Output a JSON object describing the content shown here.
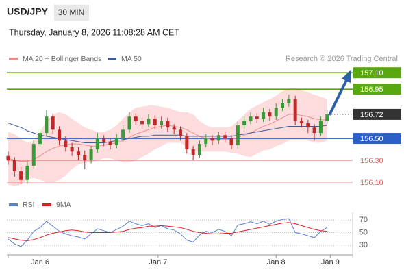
{
  "header": {
    "symbol": "USD/JPY",
    "timeframe": "30 MIN",
    "timestamp": "Thursday, January 8, 2026 11:08:28 AM CET"
  },
  "chart_data": [
    {
      "type": "candlestick",
      "source": "Research © 2026 Trading Central",
      "xlim": [
        0,
        54
      ],
      "ylim": [
        156.0,
        157.17
      ],
      "up_color": "#3a9a3a",
      "down_color": "#c0282a",
      "open": [
        156.34,
        156.3,
        156.2,
        156.12,
        156.25,
        156.45,
        156.55,
        156.7,
        156.58,
        156.48,
        156.42,
        156.38,
        156.35,
        156.3,
        156.4,
        156.5,
        156.47,
        156.44,
        156.5,
        156.58,
        156.7,
        156.66,
        156.63,
        156.68,
        156.62,
        156.66,
        156.6,
        156.58,
        156.52,
        156.4,
        156.35,
        156.45,
        156.5,
        156.48,
        156.53,
        156.5,
        156.44,
        156.62,
        156.66,
        156.7,
        156.68,
        156.74,
        156.7,
        156.78,
        156.82,
        156.86,
        156.66,
        156.64,
        156.6,
        156.55,
        156.66
      ],
      "high": [
        156.38,
        156.33,
        156.24,
        156.29,
        156.49,
        156.59,
        156.76,
        156.73,
        156.61,
        156.52,
        156.46,
        156.42,
        156.39,
        156.43,
        156.55,
        156.53,
        156.5,
        156.54,
        156.62,
        156.74,
        156.73,
        156.69,
        156.72,
        156.71,
        156.7,
        156.69,
        156.63,
        156.61,
        156.55,
        156.43,
        156.48,
        156.54,
        156.53,
        156.56,
        156.56,
        156.53,
        156.66,
        156.7,
        156.74,
        156.73,
        156.78,
        156.77,
        156.82,
        156.86,
        156.9,
        156.89,
        156.69,
        156.67,
        156.63,
        156.7,
        156.76
      ],
      "low": [
        156.26,
        156.15,
        156.08,
        156.09,
        156.22,
        156.42,
        156.52,
        156.54,
        156.44,
        156.38,
        156.34,
        156.3,
        156.22,
        156.27,
        156.37,
        156.43,
        156.4,
        156.41,
        156.47,
        156.55,
        156.62,
        156.59,
        156.6,
        156.58,
        156.59,
        156.56,
        156.54,
        156.48,
        156.36,
        156.3,
        156.32,
        156.42,
        156.44,
        156.45,
        156.46,
        156.4,
        156.41,
        156.59,
        156.63,
        156.64,
        156.65,
        156.66,
        156.67,
        156.75,
        156.79,
        156.62,
        156.6,
        156.55,
        156.48,
        156.52,
        156.63
      ],
      "close": [
        156.3,
        156.2,
        156.12,
        156.25,
        156.45,
        156.55,
        156.7,
        156.58,
        156.48,
        156.42,
        156.38,
        156.35,
        156.3,
        156.4,
        156.5,
        156.47,
        156.44,
        156.5,
        156.58,
        156.7,
        156.66,
        156.63,
        156.68,
        156.62,
        156.66,
        156.6,
        156.58,
        156.52,
        156.4,
        156.35,
        156.45,
        156.5,
        156.48,
        156.53,
        156.5,
        156.44,
        156.62,
        156.66,
        156.7,
        156.68,
        156.74,
        156.7,
        156.78,
        156.82,
        156.86,
        156.66,
        156.64,
        156.6,
        156.55,
        156.66,
        156.72
      ],
      "series": [
        {
          "name": "MA 20 + Bollinger Bands",
          "color": "#f08a8a",
          "band_color": "#fcdcdc",
          "values": [
            156.32,
            156.3,
            156.29,
            156.29,
            156.31,
            156.34,
            156.38,
            156.41,
            156.43,
            156.44,
            156.45,
            156.45,
            156.44,
            156.43,
            156.43,
            156.44,
            156.45,
            156.46,
            156.48,
            156.51,
            156.54,
            156.56,
            156.58,
            156.6,
            156.61,
            156.62,
            156.61,
            156.6,
            156.58,
            156.55,
            156.52,
            156.5,
            156.49,
            156.49,
            156.49,
            156.49,
            156.51,
            156.53,
            156.55,
            156.58,
            156.61,
            156.63,
            156.66,
            156.69,
            156.72,
            156.72,
            156.71,
            156.7,
            156.68,
            156.67,
            156.67
          ],
          "upper": [
            156.56,
            156.54,
            156.5,
            156.46,
            156.48,
            156.56,
            156.66,
            156.72,
            156.74,
            156.72,
            156.68,
            156.64,
            156.6,
            156.58,
            156.56,
            156.56,
            156.58,
            156.62,
            156.68,
            156.74,
            156.78,
            156.79,
            156.8,
            156.8,
            156.79,
            156.78,
            156.76,
            156.74,
            156.74,
            156.72,
            156.66,
            156.62,
            156.6,
            156.6,
            156.6,
            156.61,
            156.66,
            156.72,
            156.77,
            156.8,
            156.83,
            156.86,
            156.89,
            156.93,
            156.96,
            156.96,
            156.94,
            156.92,
            156.9,
            156.88,
            156.86
          ],
          "lower": [
            156.08,
            156.06,
            156.08,
            156.12,
            156.14,
            156.12,
            156.1,
            156.1,
            156.12,
            156.16,
            156.22,
            156.26,
            156.28,
            156.28,
            156.3,
            156.32,
            156.32,
            156.3,
            156.28,
            156.28,
            156.3,
            156.33,
            156.36,
            156.4,
            156.43,
            156.46,
            156.46,
            156.46,
            156.42,
            156.38,
            156.38,
            156.38,
            156.38,
            156.38,
            156.38,
            156.37,
            156.36,
            156.34,
            156.33,
            156.36,
            156.39,
            156.4,
            156.43,
            156.45,
            156.48,
            156.48,
            156.48,
            156.48,
            156.46,
            156.46,
            156.48
          ]
        },
        {
          "name": "MA 50",
          "color": "#3d5a99",
          "values": [
            156.64,
            156.62,
            156.6,
            156.57,
            156.55,
            156.53,
            156.52,
            156.51,
            156.5,
            156.49,
            156.48,
            156.47,
            156.46,
            156.46,
            156.46,
            156.46,
            156.47,
            156.48,
            156.49,
            156.5,
            156.51,
            156.52,
            156.52,
            156.53,
            156.53,
            156.53,
            156.53,
            156.53,
            156.52,
            156.52,
            156.52,
            156.52,
            156.52,
            156.52,
            156.52,
            156.52,
            156.53,
            156.54,
            156.55,
            156.56,
            156.57,
            156.58,
            156.59,
            156.6,
            156.61,
            156.61,
            156.61,
            156.61,
            156.61,
            156.61,
            156.62
          ]
        }
      ],
      "levels": [
        {
          "price": {
            "value": 157.1,
            "label": "157.10"
          },
          "color": "#5aa80f",
          "line_style": "solid",
          "label_style": "box"
        },
        {
          "price": {
            "value": 156.95,
            "label": "156.95"
          },
          "color": "#5aa80f",
          "line_style": "solid",
          "label_style": "box"
        },
        {
          "price": 156.72,
          "color": "#333333",
          "line_style": "dotted",
          "label_style": "box"
        },
        {
          "price": {
            "value": 156.5,
            "label": "156.50"
          },
          "color": "#2d5fc8",
          "line_style": "solid",
          "label_style": "box"
        },
        {
          "price": {
            "value": 156.3,
            "label": "156.30"
          },
          "color": "#e06060",
          "line_style": "thin",
          "label_style": "text"
        },
        {
          "price": {
            "value": 156.1,
            "label": "156.10"
          },
          "color": "#e06060",
          "line_style": "thin",
          "label_style": "text"
        }
      ]
    },
    {
      "type": "line",
      "xlim": [
        0,
        54
      ],
      "ylim": [
        17,
        82
      ],
      "yticks": [
        70,
        50,
        30
      ],
      "xticks": [
        {
          "value": 5,
          "label": "Jan 6"
        },
        {
          "value": 23.5,
          "label": "Jan 7"
        },
        {
          "value": 42,
          "label": "Jan 8"
        },
        {
          "value": 50.5,
          "label": "Jan 9"
        }
      ],
      "series": [
        {
          "name": "RSI",
          "color": "#5b7fd6",
          "values": [
            40,
            32,
            28,
            38,
            52,
            58,
            68,
            60,
            52,
            48,
            45,
            43,
            40,
            48,
            56,
            53,
            50,
            55,
            60,
            68,
            64,
            61,
            64,
            58,
            61,
            56,
            54,
            48,
            38,
            35,
            46,
            52,
            50,
            55,
            52,
            45,
            62,
            64,
            67,
            64,
            68,
            63,
            68,
            71,
            72,
            50,
            48,
            45,
            42,
            52,
            58
          ]
        },
        {
          "name": "9MA",
          "color": "#e02020",
          "values": [
            42,
            40,
            38,
            37,
            39,
            42,
            46,
            49,
            51,
            53,
            54,
            53,
            51,
            50,
            50,
            50,
            50,
            51,
            52,
            55,
            57,
            58,
            60,
            60,
            61,
            60,
            59,
            58,
            55,
            52,
            50,
            49,
            48,
            48,
            49,
            49,
            51,
            53,
            55,
            57,
            59,
            61,
            63,
            65,
            66,
            64,
            61,
            58,
            55,
            53,
            52
          ]
        }
      ]
    }
  ]
}
